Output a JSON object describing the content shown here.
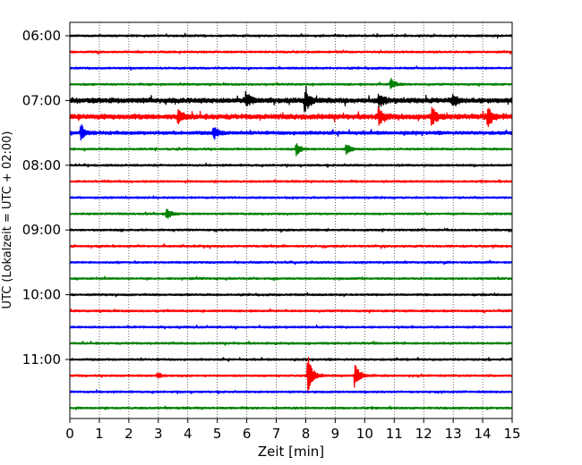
{
  "chart_data": {
    "type": "line",
    "title": "",
    "xlabel": "Zeit  [min]",
    "ylabel": "UTC (Lokalzeit = UTC + 02:00)",
    "xlim": [
      0,
      15
    ],
    "x_ticks": [
      0,
      1,
      2,
      3,
      4,
      5,
      6,
      7,
      8,
      9,
      10,
      11,
      12,
      13,
      14,
      15
    ],
    "x_tick_labels": [
      "0",
      "1",
      "2",
      "3",
      "4",
      "5",
      "6",
      "7",
      "8",
      "9",
      "10",
      "11",
      "12",
      "13",
      "14",
      "15"
    ],
    "y_tick_labels": [
      "06:00",
      "07:00",
      "08:00",
      "09:00",
      "10:00",
      "11:00"
    ],
    "grid": "vertical dotted lines at each minute",
    "trace_colors": [
      "#000000",
      "#ff0000",
      "#0000ff",
      "#008000"
    ],
    "traces_per_hour": 4,
    "trace_minutes_per_line": 15,
    "traces": [
      {
        "start": "06:00",
        "color": "#000000",
        "activity": "low"
      },
      {
        "start": "06:15",
        "color": "#ff0000",
        "activity": "low"
      },
      {
        "start": "06:30",
        "color": "#0000ff",
        "activity": "low"
      },
      {
        "start": "06:45",
        "color": "#008000",
        "activity": "low",
        "events": [
          [
            10.9,
            0.6
          ]
        ]
      },
      {
        "start": "07:00",
        "color": "#000000",
        "activity": "high",
        "events": [
          [
            8.0,
            1.0
          ],
          [
            6.0,
            0.7
          ],
          [
            13.0,
            0.6
          ],
          [
            10.5,
            0.6
          ]
        ]
      },
      {
        "start": "07:15",
        "color": "#ff0000",
        "activity": "high",
        "events": [
          [
            3.7,
            0.6
          ],
          [
            10.5,
            0.8
          ],
          [
            12.3,
            0.8
          ],
          [
            14.2,
            0.9
          ]
        ]
      },
      {
        "start": "07:30",
        "color": "#0000ff",
        "activity": "medium",
        "events": [
          [
            0.4,
            0.7
          ],
          [
            4.9,
            0.6
          ]
        ]
      },
      {
        "start": "07:45",
        "color": "#008000",
        "activity": "low",
        "events": [
          [
            7.7,
            0.6
          ],
          [
            9.4,
            0.5
          ]
        ]
      },
      {
        "start": "08:00",
        "color": "#000000",
        "activity": "low"
      },
      {
        "start": "08:15",
        "color": "#ff0000",
        "activity": "low"
      },
      {
        "start": "08:30",
        "color": "#0000ff",
        "activity": "low"
      },
      {
        "start": "08:45",
        "color": "#008000",
        "activity": "low",
        "events": [
          [
            3.3,
            0.5
          ]
        ]
      },
      {
        "start": "09:00",
        "color": "#000000",
        "activity": "low"
      },
      {
        "start": "09:15",
        "color": "#ff0000",
        "activity": "low"
      },
      {
        "start": "09:30",
        "color": "#0000ff",
        "activity": "low"
      },
      {
        "start": "09:45",
        "color": "#008000",
        "activity": "low"
      },
      {
        "start": "10:00",
        "color": "#000000",
        "activity": "low"
      },
      {
        "start": "10:15",
        "color": "#ff0000",
        "activity": "low"
      },
      {
        "start": "10:30",
        "color": "#0000ff",
        "activity": "low"
      },
      {
        "start": "10:45",
        "color": "#008000",
        "activity": "low"
      },
      {
        "start": "11:00",
        "color": "#000000",
        "activity": "low"
      },
      {
        "start": "11:15",
        "color": "#ff0000",
        "activity": "low",
        "events": [
          [
            8.1,
            2.0
          ],
          [
            9.7,
            1.2
          ],
          [
            3.0,
            0.3
          ]
        ]
      },
      {
        "start": "11:30",
        "color": "#0000ff",
        "activity": "low"
      },
      {
        "start": "11:45",
        "color": "#008000",
        "activity": "low"
      }
    ]
  }
}
